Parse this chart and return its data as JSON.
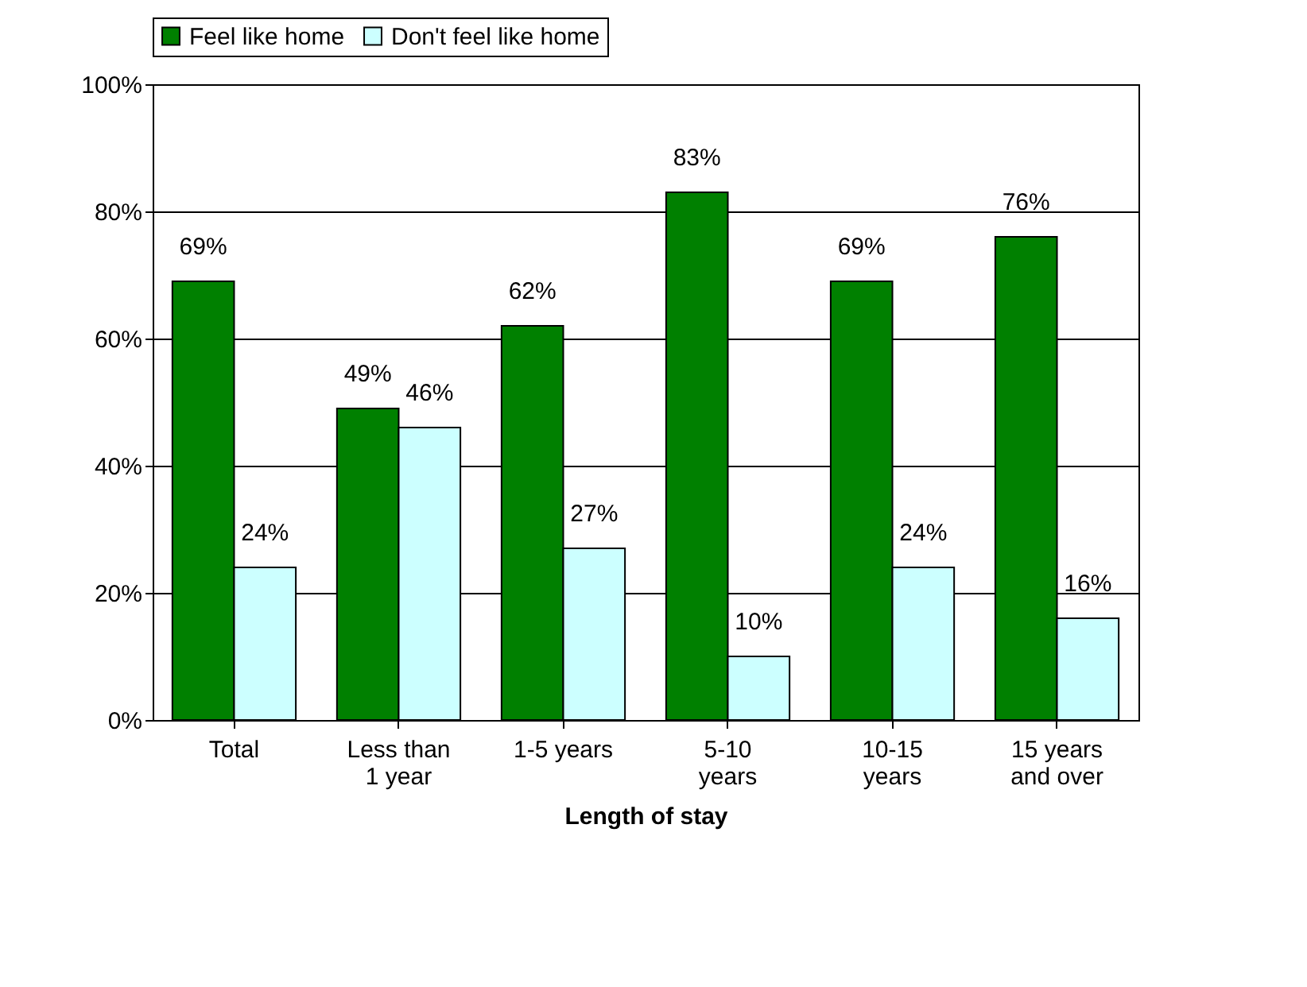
{
  "chart_data": {
    "type": "bar",
    "xlabel": "Length of stay",
    "categories": [
      "Total",
      "Less than 1 year",
      "1-5 years",
      "5-10 years",
      "10-15 years",
      "15 years and over"
    ],
    "series": [
      {
        "name": "Feel like home",
        "color": "#008000",
        "values": [
          69,
          49,
          62,
          83,
          69,
          76
        ],
        "value_labels": [
          "69%",
          "49%",
          "62%",
          "83%",
          "69%",
          "76%"
        ]
      },
      {
        "name": "Don't feel like home",
        "color": "#ccffff",
        "values": [
          24,
          46,
          27,
          10,
          24,
          16
        ],
        "value_labels": [
          "24%",
          "46%",
          "27%",
          "10%",
          "24%",
          "16%"
        ]
      }
    ],
    "ylim": [
      0,
      100
    ],
    "yticks": [
      {
        "value": 0,
        "label": "0%"
      },
      {
        "value": 20,
        "label": "20%"
      },
      {
        "value": 40,
        "label": "40%"
      },
      {
        "value": 60,
        "label": "60%"
      },
      {
        "value": 80,
        "label": "80%"
      },
      {
        "value": 100,
        "label": "100%"
      }
    ],
    "grid": "y",
    "legend": "top"
  }
}
